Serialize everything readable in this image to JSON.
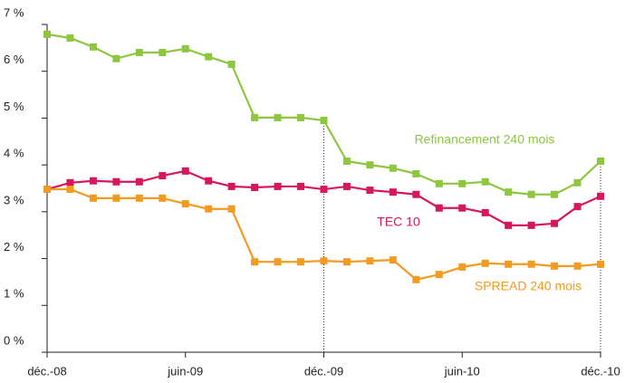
{
  "chart_data": {
    "type": "line",
    "categories": [
      "déc.-08",
      null,
      null,
      null,
      null,
      null,
      "juin-09",
      null,
      null,
      null,
      null,
      null,
      "déc.-09",
      null,
      null,
      null,
      null,
      null,
      "juin-10",
      null,
      null,
      null,
      null,
      null,
      "déc.-10"
    ],
    "series": [
      {
        "name": "Refinancement 240 mois",
        "color": "#8dc63f",
        "values": [
          6.79,
          6.71,
          6.52,
          6.27,
          6.4,
          6.4,
          6.48,
          6.31,
          6.15,
          5.01,
          5.01,
          5.01,
          4.95,
          4.08,
          4.0,
          3.93,
          3.81,
          3.6,
          3.6,
          3.64,
          3.42,
          3.37,
          3.37,
          3.62,
          4.08
        ]
      },
      {
        "name": "TEC 10",
        "color": "#d6175e",
        "values": [
          3.48,
          3.62,
          3.66,
          3.64,
          3.64,
          3.77,
          3.87,
          3.66,
          3.54,
          3.52,
          3.54,
          3.54,
          3.48,
          3.54,
          3.46,
          3.42,
          3.37,
          3.08,
          3.08,
          2.98,
          2.71,
          2.71,
          2.75,
          3.11,
          3.33
        ]
      },
      {
        "name": "SPREAD 240 mois",
        "color": "#f39a21",
        "values": [
          3.48,
          3.48,
          3.29,
          3.29,
          3.29,
          3.29,
          3.17,
          3.06,
          3.06,
          1.93,
          1.93,
          1.93,
          1.95,
          1.93,
          1.95,
          1.97,
          1.55,
          1.66,
          1.82,
          1.9,
          1.88,
          1.88,
          1.84,
          1.84,
          1.88
        ]
      }
    ],
    "ylim": [
      0,
      7
    ],
    "yticks": [
      {
        "value": 0,
        "label": "0 %"
      },
      {
        "value": 1,
        "label": "1 %"
      },
      {
        "value": 2,
        "label": "2 %"
      },
      {
        "value": 3,
        "label": "3 %"
      },
      {
        "value": 4,
        "label": "4 %"
      },
      {
        "value": 5,
        "label": "5 %"
      },
      {
        "value": 6,
        "label": "6 %"
      },
      {
        "value": 7,
        "label": "7 %"
      }
    ],
    "grid": false
  }
}
